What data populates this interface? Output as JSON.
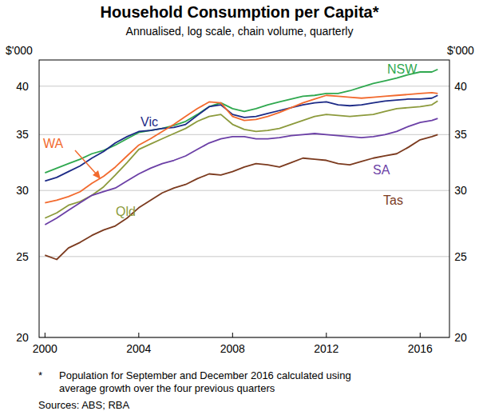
{
  "chart_data": {
    "type": "line",
    "title": "Household Consumption per Capita*",
    "subtitle": "Annualised, log scale, chain volume, quarterly",
    "y_label": "$'000",
    "log": "y",
    "grid": true,
    "xlim": [
      1999.75,
      2017.25
    ],
    "xticks": [
      2000,
      2004,
      2008,
      2012,
      2016
    ],
    "ylim": [
      20,
      43
    ],
    "yticks": [
      20,
      25,
      30,
      35,
      40
    ],
    "x": [
      2000,
      2000.5,
      2001,
      2001.5,
      2002,
      2002.5,
      2003,
      2003.5,
      2004,
      2004.5,
      2005,
      2005.5,
      2006,
      2006.5,
      2007,
      2007.5,
      2008,
      2008.5,
      2009,
      2009.5,
      2010,
      2010.5,
      2011,
      2011.5,
      2012,
      2012.5,
      2013,
      2013.5,
      2014,
      2014.5,
      2015,
      2015.5,
      2016,
      2016.5,
      2016.75
    ],
    "series": [
      {
        "name": "NSW",
        "color": "#2fa84f",
        "values": [
          31.5,
          31.9,
          32.3,
          32.7,
          33.2,
          33.5,
          34.0,
          34.6,
          35.2,
          35.4,
          35.6,
          35.9,
          36.3,
          37.0,
          37.8,
          38.2,
          37.6,
          37.3,
          37.6,
          38.0,
          38.3,
          38.6,
          38.9,
          39.0,
          39.2,
          39.2,
          39.5,
          39.9,
          40.3,
          40.6,
          40.9,
          41.3,
          41.6,
          41.6,
          41.9
        ]
      },
      {
        "name": "Vic",
        "color": "#1c2a86",
        "values": [
          30.8,
          31.1,
          31.6,
          32.1,
          32.8,
          33.4,
          34.2,
          34.8,
          35.3,
          35.4,
          35.6,
          35.7,
          36.0,
          36.9,
          37.8,
          38.0,
          37.0,
          36.7,
          36.8,
          37.1,
          37.4,
          37.7,
          38.0,
          38.2,
          38.3,
          38.0,
          37.9,
          38.0,
          38.2,
          38.4,
          38.5,
          38.6,
          38.6,
          38.7,
          39.0
        ]
      },
      {
        "name": "WA",
        "color": "#f26a2e",
        "values": [
          29.0,
          29.2,
          29.5,
          29.9,
          30.6,
          31.2,
          32.0,
          33.0,
          34.0,
          34.6,
          35.3,
          36.0,
          36.8,
          37.6,
          38.3,
          38.2,
          36.8,
          36.4,
          36.5,
          36.8,
          37.2,
          37.7,
          38.2,
          38.6,
          39.0,
          38.9,
          38.8,
          38.7,
          38.8,
          38.9,
          39.0,
          39.1,
          39.2,
          39.3,
          39.2
        ]
      },
      {
        "name": "Qld",
        "color": "#8c9a3c",
        "values": [
          27.8,
          28.2,
          28.8,
          29.1,
          29.6,
          30.3,
          31.3,
          32.4,
          33.6,
          34.1,
          34.6,
          35.1,
          35.6,
          36.3,
          36.8,
          37.0,
          36.0,
          35.5,
          35.3,
          35.4,
          35.6,
          36.0,
          36.4,
          36.8,
          37.0,
          36.9,
          36.8,
          36.9,
          37.0,
          37.3,
          37.6,
          37.7,
          37.8,
          38.0,
          38.4
        ]
      },
      {
        "name": "SA",
        "color": "#6b3fa6",
        "values": [
          27.3,
          27.8,
          28.4,
          29.0,
          29.6,
          29.9,
          30.2,
          30.8,
          31.4,
          31.9,
          32.3,
          32.6,
          33.0,
          33.6,
          34.2,
          34.6,
          34.8,
          34.8,
          34.6,
          34.6,
          34.7,
          34.9,
          35.0,
          35.1,
          35.0,
          34.9,
          34.8,
          34.7,
          34.8,
          35.0,
          35.3,
          35.8,
          36.2,
          36.4,
          36.6
        ]
      },
      {
        "name": "Tas",
        "color": "#7b3a1e",
        "values": [
          25.1,
          24.8,
          25.6,
          26.0,
          26.5,
          26.9,
          27.2,
          27.8,
          28.6,
          29.2,
          29.8,
          30.2,
          30.5,
          31.0,
          31.4,
          31.3,
          31.6,
          32.0,
          32.3,
          32.2,
          32.0,
          32.4,
          32.8,
          32.7,
          32.6,
          32.3,
          32.2,
          32.5,
          32.8,
          33.0,
          33.2,
          33.8,
          34.5,
          34.8,
          35.0
        ]
      }
    ],
    "footnote_marker": "*",
    "footnote": [
      "Population for September and December 2016 calculated using",
      "average growth over the four previous quarters"
    ],
    "source": "Sources: ABS; RBA"
  }
}
